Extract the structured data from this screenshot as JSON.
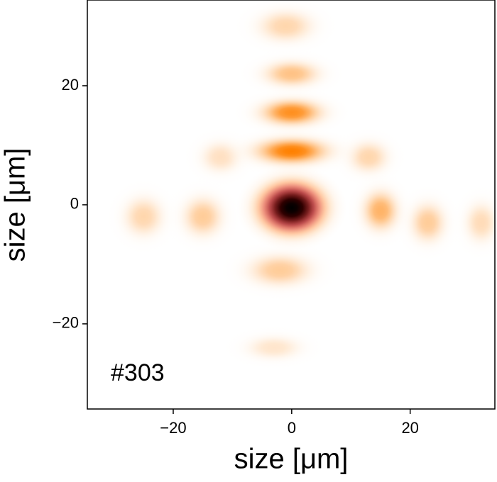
{
  "chart_data": {
    "type": "heatmap",
    "colormap": "gist_heat_r",
    "xlabel": "size [μm]",
    "ylabel": "size [μm]",
    "annotation": "#303",
    "xlim": [
      -34.5,
      34.3
    ],
    "ylim": [
      -34.3,
      34.4
    ],
    "xticks": [
      {
        "value": -20,
        "label": "−20"
      },
      0,
      20
    ],
    "yticks": [
      {
        "value": -20,
        "label": "−20"
      },
      0,
      20
    ],
    "spots": {
      "x": [
        0,
        0,
        0,
        0,
        -1,
        -2,
        -3,
        15,
        23,
        -15,
        -25,
        13,
        -12,
        32
      ],
      "y": [
        -0.5,
        9,
        15.5,
        22,
        30,
        -11,
        -24,
        -1,
        -3,
        -2,
        -2,
        8,
        8,
        -3
      ],
      "values": [
        1,
        0.25,
        0.22,
        0.12,
        0.08,
        0.1,
        0.05,
        0.15,
        0.1,
        0.1,
        0.08,
        0.08,
        0.06,
        0.07
      ],
      "sx": [
        3.6,
        4.5,
        3.8,
        3.5,
        3.5,
        4,
        3.5,
        2.2,
        2.2,
        2.5,
        2.5,
        2.5,
        2.5,
        2
      ],
      "sy": [
        2.8,
        1.6,
        1.6,
        1.6,
        2,
        2,
        1.5,
        2.5,
        2.5,
        2.5,
        2.5,
        2,
        2,
        2.5
      ]
    }
  }
}
